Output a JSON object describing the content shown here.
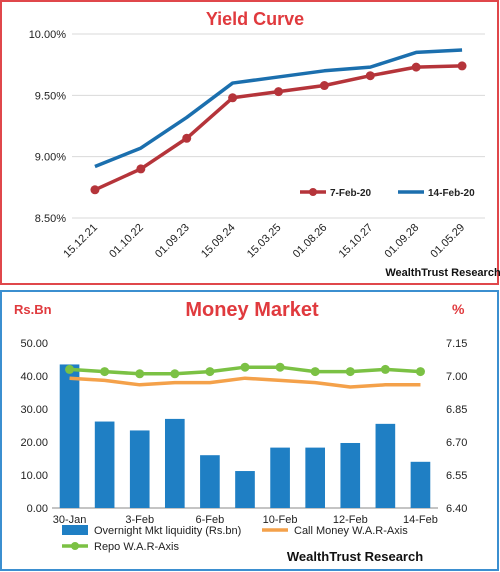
{
  "colors": {
    "title_red": "#e03a3e",
    "frame_red": "#e0474b",
    "frame_blue": "#3b8fd0",
    "series_red": "#b5343a",
    "series_blue": "#1b6fae",
    "bar_blue": "#1f7fc4",
    "line_orange": "#f4a14a",
    "line_green": "#7bc144"
  },
  "chart_data": [
    {
      "type": "line",
      "title": "Yield Curve",
      "categories": [
        "15.12.21",
        "01.10.22",
        "01.09.23",
        "15.09.24",
        "15.03.25",
        "01.08.26",
        "15.10.27",
        "01.09.28",
        "01.05.29"
      ],
      "y_ticks": [
        "10.00%",
        "9.50%",
        "9.00%",
        "8.50%"
      ],
      "ylim": [
        8.5,
        10.0
      ],
      "y_unit": "%",
      "grid": "horizontal",
      "legend_position": "bottom-right",
      "series": [
        {
          "name": "7-Feb-20",
          "color": "#b5343a",
          "markers": true,
          "values": [
            8.73,
            8.9,
            9.15,
            9.48,
            9.53,
            9.58,
            9.66,
            9.73,
            9.74
          ]
        },
        {
          "name": "14-Feb-20",
          "color": "#1b6fae",
          "markers": false,
          "values": [
            8.92,
            9.07,
            9.32,
            9.6,
            9.65,
            9.7,
            9.73,
            9.85,
            9.87
          ]
        }
      ],
      "source": "WealthTrust Research"
    },
    {
      "type": "bar",
      "title": "Money Market",
      "ylabel_left": "Rs.Bn",
      "ylabel_right": "%",
      "x_tick_labels": [
        "30-Jan",
        "3-Feb",
        "6-Feb",
        "10-Feb",
        "12-Feb",
        "14-Feb"
      ],
      "ylim_left": [
        0,
        50
      ],
      "y_ticks_left": [
        "50.00",
        "40.00",
        "30.00",
        "20.00",
        "10.00",
        "0.00"
      ],
      "ylim_right": [
        6.4,
        7.15
      ],
      "y_ticks_right": [
        "7.15",
        "7.00",
        "6.85",
        "6.70",
        "6.55",
        "6.40"
      ],
      "grid": "none",
      "legend_position": "bottom",
      "series": [
        {
          "name": "Overnight Mkt liquidity (Rs.bn)",
          "type": "bar",
          "axis": "left",
          "color": "#1f7fc4",
          "values": [
            43.5,
            26.2,
            23.5,
            27.0,
            16.0,
            11.2,
            18.3,
            18.3,
            19.7,
            25.5,
            14.0
          ]
        },
        {
          "name": "Call Money W.A.R-Axis",
          "type": "line",
          "axis": "right",
          "color": "#f4a14a",
          "values": [
            6.99,
            6.98,
            6.96,
            6.97,
            6.97,
            6.99,
            6.98,
            6.97,
            6.95,
            6.96,
            6.96
          ]
        },
        {
          "name": "Repo W.A.R-Axis",
          "type": "line",
          "axis": "right",
          "color": "#7bc144",
          "markers": true,
          "values": [
            7.03,
            7.02,
            7.01,
            7.01,
            7.02,
            7.04,
            7.04,
            7.02,
            7.02,
            7.03,
            7.02
          ]
        }
      ],
      "source": "WealthTrust Research"
    }
  ]
}
